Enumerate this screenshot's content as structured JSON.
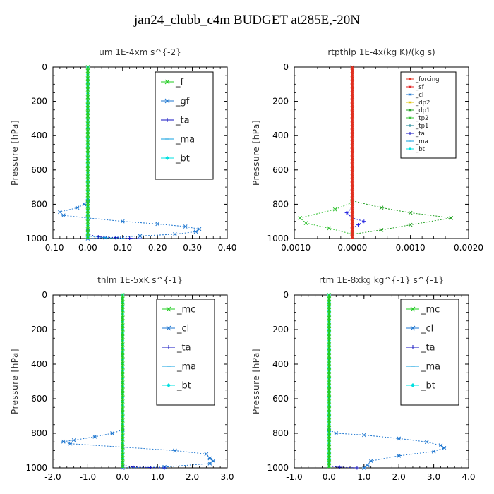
{
  "title": "jan24_clubb_c4m  BUDGET at285E,-20N",
  "chart_data": [
    {
      "type": "line",
      "title": "um   1E-4xm s^{-2}",
      "ylabel": "Pressure [hPa]",
      "xlim": [
        -0.1,
        0.4
      ],
      "ylim": [
        1000,
        0
      ],
      "xticks": [
        "-0.10",
        "0.00",
        "0.10",
        "0.20",
        "0.30",
        "0.40"
      ],
      "xtick_values": [
        -0.1,
        0.0,
        0.1,
        0.2,
        0.3,
        0.4
      ],
      "yticks": [
        0,
        200,
        400,
        600,
        800,
        1000
      ],
      "legend": [
        "_f",
        "_gf",
        "_ta",
        "_ma",
        "_bt"
      ],
      "series": [
        {
          "name": "_gf",
          "color": "#1f77d0",
          "x": [
            0,
            -0.01,
            -0.03,
            -0.08,
            -0.07,
            0.0,
            0.1,
            0.2,
            0.28,
            0.32,
            0.31,
            0.25,
            0.15,
            0.05,
            0.0
          ],
          "y": [
            780,
            800,
            820,
            845,
            865,
            880,
            900,
            915,
            930,
            945,
            960,
            975,
            985,
            995,
            1000
          ]
        },
        {
          "name": "_ta",
          "color": "#1010c0",
          "x": [
            0,
            0,
            0.03,
            0.08,
            0.12,
            0.15
          ],
          "y": [
            950,
            975,
            990,
            995,
            998,
            1000
          ]
        },
        {
          "name": "_ma",
          "color": "#10a0e0",
          "x": [
            0,
            0.05,
            0.1
          ],
          "y": [
            985,
            995,
            1000
          ]
        },
        {
          "name": "_bt",
          "color": "#00e0e0",
          "x": [
            0,
            0
          ],
          "y": [
            0,
            1000
          ]
        },
        {
          "name": "_f",
          "color": "#22cc22",
          "x": [
            0,
            0
          ],
          "y": [
            0,
            1000
          ]
        }
      ]
    },
    {
      "type": "line",
      "title": "rtpthlp   1E-4x(kg K)/(kg s)",
      "ylabel": "Pressure [hPa]",
      "xlim": [
        -0.001,
        0.002
      ],
      "ylim": [
        1000,
        0
      ],
      "xticks": [
        "-0.0010",
        "0.0000",
        "0.0010",
        "0.0020"
      ],
      "xtick_values": [
        -0.001,
        0.0,
        0.001,
        0.002
      ],
      "yticks": [
        0,
        200,
        400,
        600,
        800,
        1000
      ],
      "legend": [
        "_forcing",
        "_sf",
        "_cl",
        "_dp2",
        "_dp1",
        "_tp2",
        "_tp1",
        "_ta",
        "_ma",
        "_bt"
      ],
      "series": [
        {
          "name": "_dp1",
          "color": "#20a020",
          "x": [
            0,
            0.0005,
            0.001,
            0.0017,
            0.001,
            0.0005,
            0
          ],
          "y": [
            780,
            820,
            850,
            880,
            920,
            950,
            975
          ]
        },
        {
          "name": "_tp2",
          "color": "#30c030",
          "x": [
            0,
            -0.0003,
            -0.0009,
            -0.0008,
            -0.0004,
            0
          ],
          "y": [
            790,
            830,
            880,
            910,
            940,
            975
          ]
        },
        {
          "name": "_ta",
          "color": "#2020e0",
          "x": [
            0,
            -0.0001,
            0.0,
            0.0002,
            0.0001,
            0
          ],
          "y": [
            820,
            850,
            880,
            900,
            920,
            940
          ]
        },
        {
          "name": "_forcing",
          "color": "#e03020",
          "x": [
            0,
            0
          ],
          "y": [
            0,
            1000
          ]
        }
      ]
    },
    {
      "type": "line",
      "title": "thlm   1E-5xK s^{-1}",
      "ylabel": "Pressure [hPa]",
      "xlim": [
        -2.0,
        3.0
      ],
      "ylim": [
        1000,
        0
      ],
      "xticks": [
        "-2.0",
        "-1.0",
        "0.0",
        "1.0",
        "2.0",
        "3.0"
      ],
      "xtick_values": [
        -2,
        -1,
        0,
        1,
        2,
        3
      ],
      "yticks": [
        0,
        200,
        400,
        600,
        800,
        1000
      ],
      "legend": [
        "_mc",
        "_cl",
        "_ta",
        "_ma",
        "_bt"
      ],
      "series": [
        {
          "name": "_cl",
          "color": "#1f77d0",
          "x": [
            0,
            -0.3,
            -0.8,
            -1.4,
            -1.7,
            -1.5,
            0.0,
            1.5,
            2.4,
            2.5,
            2.6,
            2.5,
            1.2,
            0.0
          ],
          "y": [
            780,
            800,
            820,
            840,
            848,
            860,
            880,
            900,
            920,
            945,
            960,
            975,
            995,
            1000
          ]
        },
        {
          "name": "_ta",
          "color": "#1010c0",
          "x": [
            0,
            0.3,
            0.8,
            1.2
          ],
          "y": [
            985,
            995,
            998,
            1000
          ]
        },
        {
          "name": "_bt",
          "color": "#00e0e0",
          "x": [
            0,
            0
          ],
          "y": [
            0,
            1000
          ]
        },
        {
          "name": "_mc",
          "color": "#22cc22",
          "x": [
            0,
            0
          ],
          "y": [
            0,
            1000
          ]
        }
      ]
    },
    {
      "type": "line",
      "title": "rtm   1E-8xkg kg^{-1} s^{-1}",
      "ylabel": "Pressure [hPa]",
      "xlim": [
        -1.0,
        4.0
      ],
      "ylim": [
        1000,
        0
      ],
      "xticks": [
        "-1.0",
        "0.0",
        "1.0",
        "2.0",
        "3.0",
        "4.0"
      ],
      "xtick_values": [
        -1,
        0,
        1,
        2,
        3,
        4
      ],
      "yticks": [
        0,
        200,
        400,
        600,
        800,
        1000
      ],
      "legend": [
        "_mc",
        "_cl",
        "_ta",
        "_ma",
        "_bt"
      ],
      "series": [
        {
          "name": "_cl",
          "color": "#1f77d0",
          "x": [
            0,
            0.2,
            1.0,
            2.0,
            2.8,
            3.2,
            3.3,
            3.0,
            2.0,
            1.2,
            1.1,
            1.0
          ],
          "y": [
            780,
            800,
            810,
            830,
            850,
            870,
            885,
            905,
            930,
            960,
            985,
            1000
          ]
        },
        {
          "name": "_ta",
          "color": "#1010c0",
          "x": [
            0,
            0.3,
            0.8
          ],
          "y": [
            990,
            996,
            1000
          ]
        },
        {
          "name": "_bt",
          "color": "#00e0e0",
          "x": [
            0,
            0
          ],
          "y": [
            0,
            1000
          ]
        },
        {
          "name": "_mc",
          "color": "#22cc22",
          "x": [
            0,
            0
          ],
          "y": [
            0,
            1000
          ]
        }
      ]
    }
  ]
}
